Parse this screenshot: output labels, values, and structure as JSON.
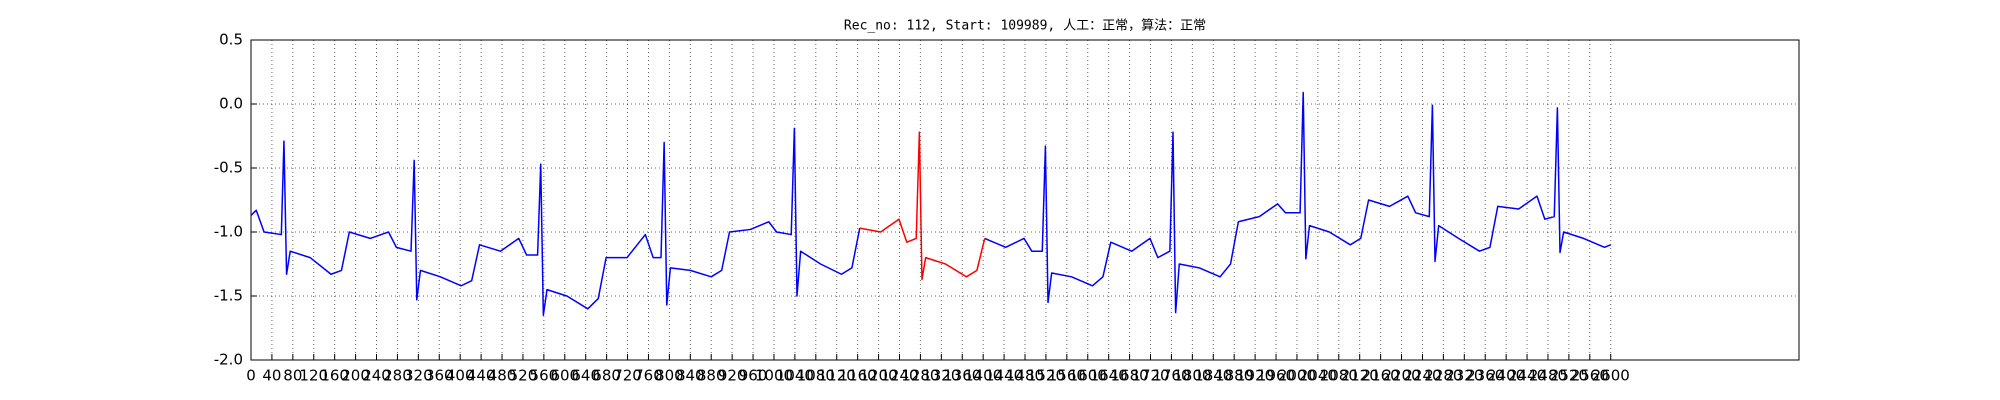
{
  "chart_data": {
    "type": "line",
    "title": "Rec_no: 112, Start: 109989, 人工：正常，算法：正常",
    "x": [
      0,
      10,
      25,
      58,
      63,
      68,
      75,
      113,
      153,
      173,
      188,
      228,
      263,
      278,
      306,
      312,
      317,
      324,
      362,
      402,
      422,
      437,
      477,
      512,
      527,
      548,
      554,
      559,
      566,
      604,
      644,
      664,
      679,
      719,
      754,
      769,
      784,
      790,
      795,
      802,
      840,
      880,
      900,
      915,
      955,
      990,
      1005,
      1033,
      1039,
      1044,
      1051,
      1089,
      1129,
      1149,
      1164,
      1204,
      1239,
      1254,
      1272,
      1278,
      1283,
      1290,
      1328,
      1368,
      1388,
      1403,
      1443,
      1478,
      1493,
      1513,
      1519,
      1524,
      1531,
      1569,
      1609,
      1629,
      1644,
      1684,
      1719,
      1734,
      1757,
      1763,
      1768,
      1775,
      1813,
      1853,
      1873,
      1888,
      1928,
      1963,
      1978,
      2006,
      2012,
      2017,
      2024,
      2062,
      2102,
      2122,
      2137,
      2177,
      2212,
      2227,
      2253,
      2259,
      2264,
      2271,
      2309,
      2349,
      2369,
      2384,
      2424,
      2459,
      2474,
      2492,
      2498,
      2503,
      2510,
      2548,
      2588,
      2600
    ],
    "series": [
      {
        "color": "#0000ff",
        "values": [
          -0.87,
          -0.83,
          -1.0,
          -1.02,
          -0.29,
          -1.33,
          -1.15,
          -1.2,
          -1.33,
          -1.3,
          -1.0,
          -1.05,
          -1.0,
          -1.12,
          -1.15,
          -0.44,
          -1.53,
          -1.3,
          -1.35,
          -1.42,
          -1.38,
          -1.1,
          -1.15,
          -1.05,
          -1.18,
          -1.18,
          -0.47,
          -1.65,
          -1.45,
          -1.5,
          -1.6,
          -1.52,
          -1.2,
          -1.2,
          -1.02,
          -1.2,
          -1.2,
          -0.3,
          -1.57,
          -1.28,
          -1.3,
          -1.35,
          -1.3,
          -1.0,
          -0.98,
          -0.92,
          -1.0,
          -1.02,
          -0.19,
          -1.5,
          -1.15,
          -1.25,
          -1.33,
          -1.28,
          -0.97,
          null,
          null,
          null,
          null,
          null,
          null,
          null,
          null,
          null,
          null,
          -1.05,
          -1.12,
          -1.05,
          -1.15,
          -1.15,
          -0.33,
          -1.55,
          -1.32,
          -1.35,
          -1.42,
          -1.35,
          -1.08,
          -1.15,
          -1.05,
          -1.2,
          -1.15,
          -0.22,
          -1.63,
          -1.25,
          -1.28,
          -1.35,
          -1.25,
          -0.92,
          -0.88,
          -0.78,
          -0.85,
          -0.85,
          0.09,
          -1.21,
          -0.95,
          -1.0,
          -1.1,
          -1.05,
          -0.75,
          -0.8,
          -0.72,
          -0.85,
          -0.88,
          -0.01,
          -1.23,
          -0.95,
          -1.05,
          -1.15,
          -1.12,
          -0.8,
          -0.82,
          -0.72,
          -0.9,
          -0.88,
          -0.03,
          -1.16,
          -1.0,
          -1.05,
          -1.12,
          -1.1
        ]
      },
      {
        "color": "#ff0000",
        "values": [
          null,
          null,
          null,
          null,
          null,
          null,
          null,
          null,
          null,
          null,
          null,
          null,
          null,
          null,
          null,
          null,
          null,
          null,
          null,
          null,
          null,
          null,
          null,
          null,
          null,
          null,
          null,
          null,
          null,
          null,
          null,
          null,
          null,
          null,
          null,
          null,
          null,
          null,
          null,
          null,
          null,
          null,
          null,
          null,
          null,
          null,
          null,
          null,
          null,
          null,
          null,
          null,
          null,
          null,
          -0.97,
          -1.0,
          -0.9,
          -1.08,
          -1.05,
          -0.22,
          -1.37,
          -1.2,
          -1.25,
          -1.35,
          -1.3,
          -1.05,
          null,
          null,
          null,
          null,
          null,
          null,
          null,
          null,
          null,
          null,
          null,
          null,
          null,
          null,
          null,
          null,
          null,
          null,
          null,
          null,
          null,
          null,
          null,
          null,
          null,
          null,
          null,
          null,
          null,
          null,
          null,
          null,
          null,
          null,
          null,
          null,
          null,
          null,
          null,
          null,
          null,
          null,
          null,
          null,
          null,
          null,
          null,
          null,
          null,
          null,
          null,
          null,
          null,
          null
        ]
      }
    ],
    "xlim": [
      0,
      2960
    ],
    "xticks": [
      0,
      40,
      80,
      120,
      160,
      200,
      240,
      280,
      320,
      360,
      400,
      440,
      480,
      520,
      560,
      600,
      640,
      680,
      720,
      760,
      800,
      840,
      880,
      920,
      960,
      1000,
      1040,
      1080,
      1120,
      1160,
      1200,
      1240,
      1280,
      1320,
      1360,
      1400,
      1440,
      1480,
      1520,
      1560,
      1600,
      1640,
      1680,
      1720,
      1760,
      1800,
      1840,
      1880,
      1920,
      1960,
      2000,
      2040,
      2080,
      2120,
      2160,
      2200,
      2240,
      2280,
      2320,
      2360,
      2400,
      2440,
      2480,
      2520,
      2560,
      2600
    ],
    "ylim": [
      -2.0,
      0.5
    ],
    "yticks": [
      {
        "value": -2.0,
        "label": "-2.0"
      },
      {
        "value": -1.5,
        "label": "-1.5"
      },
      {
        "value": -1.0,
        "label": "-1.0"
      },
      {
        "value": -0.5,
        "label": "-0.5"
      },
      {
        "value": 0,
        "label": "0.0"
      },
      {
        "value": 0.5,
        "label": "0.5"
      }
    ],
    "grid": true
  }
}
